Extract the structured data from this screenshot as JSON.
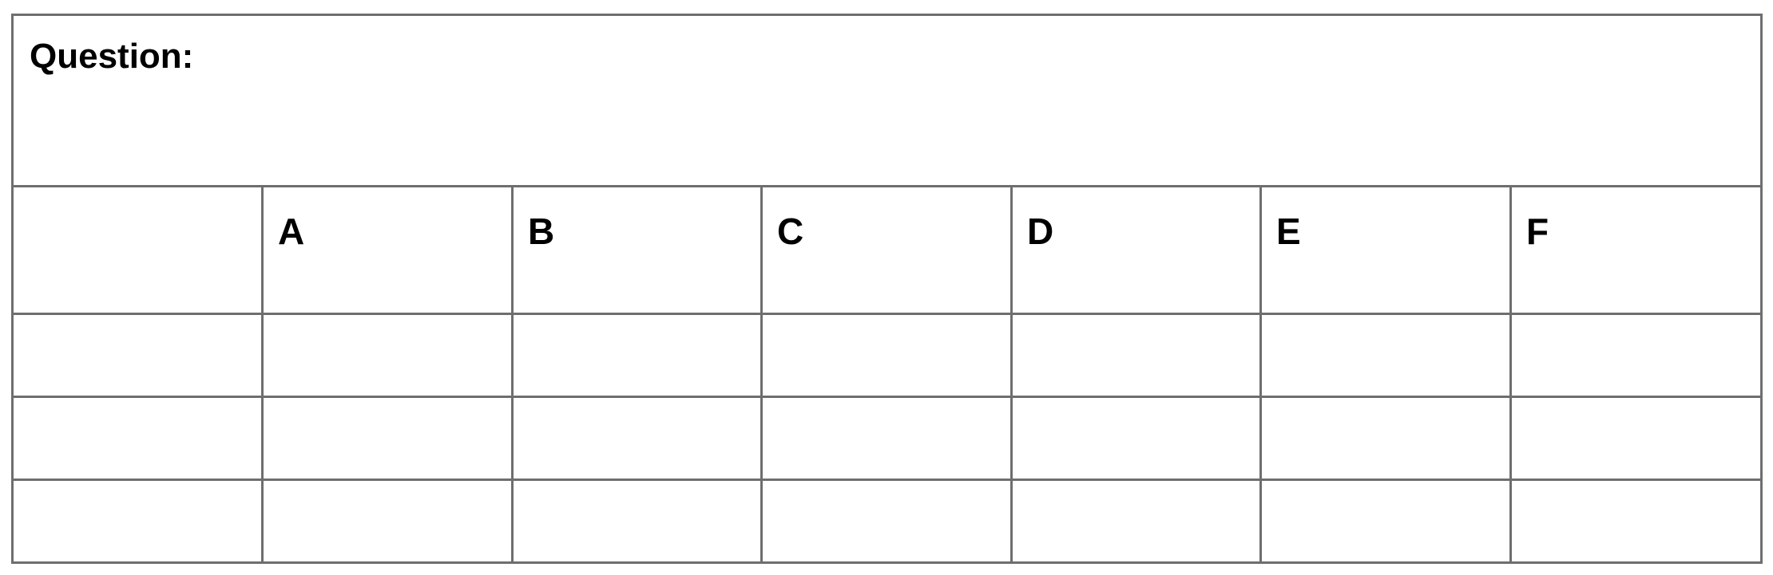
{
  "question_label": "Question:",
  "columns": [
    "",
    "A",
    "B",
    "C",
    "D",
    "E",
    "F"
  ],
  "rows": [
    [
      "",
      "",
      "",
      "",
      "",
      "",
      ""
    ],
    [
      "",
      "",
      "",
      "",
      "",
      "",
      ""
    ],
    [
      "",
      "",
      "",
      "",
      "",
      "",
      ""
    ]
  ]
}
